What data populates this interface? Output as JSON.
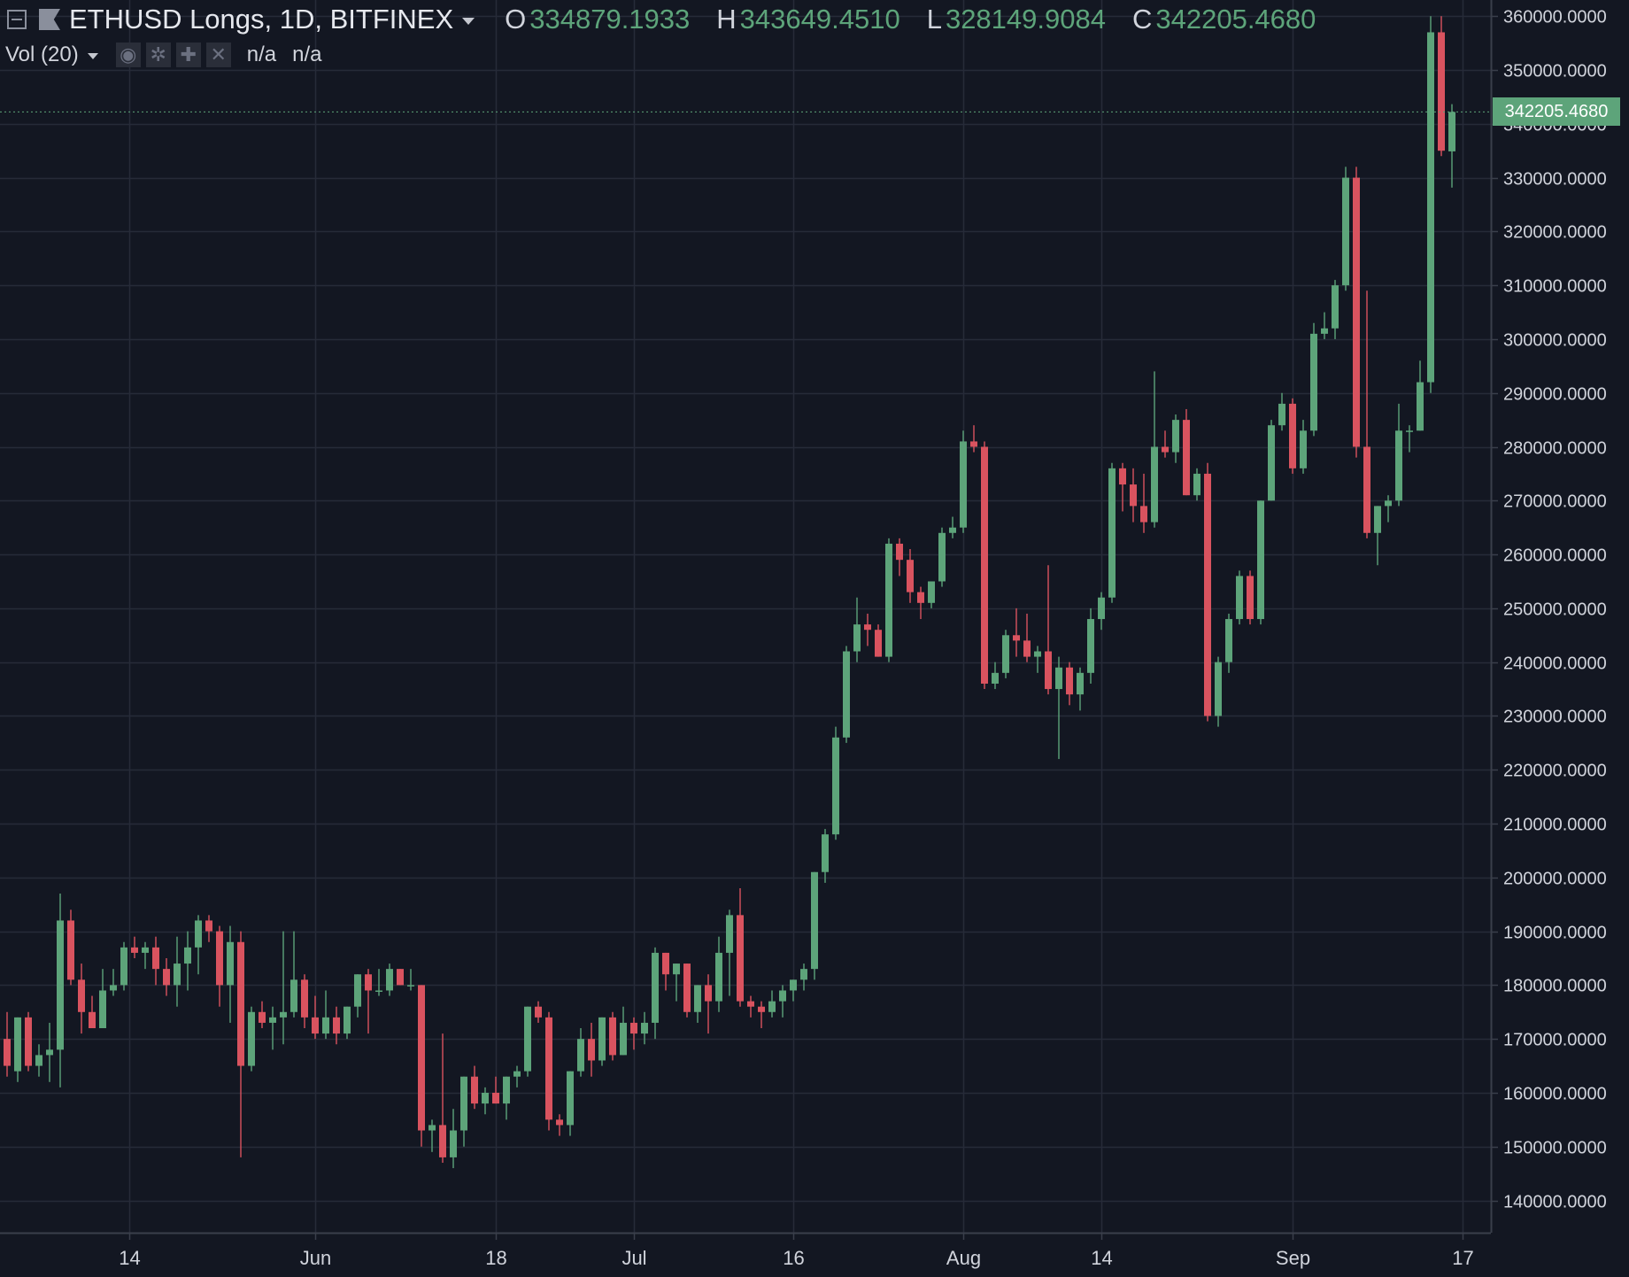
{
  "header": {
    "symbol": "ETHUSD Longs, 1D, BITFINEX",
    "o_label": "O",
    "o_value": "334879.1933",
    "h_label": "H",
    "h_value": "343649.4510",
    "l_label": "L",
    "l_value": "328149.9084",
    "c_label": "C",
    "c_value": "342205.4680"
  },
  "indicator": {
    "label": "Vol (20)",
    "value1": "n/a",
    "value2": "n/a"
  },
  "toolbar_icons": [
    "eye-icon",
    "gear-icon",
    "plus-icon",
    "close-icon"
  ],
  "price_tag": {
    "text": "342205.4680",
    "value": 342205.468,
    "color": "#5da47a"
  },
  "colors": {
    "background": "#131722",
    "up": "#5da47a",
    "down": "#d9535f",
    "grid": "#262b38",
    "text": "#d1d4dc"
  },
  "chart_data": {
    "type": "candlestick",
    "title": "ETHUSD Longs, 1D, BITFINEX",
    "grid": true,
    "y_axis_position": "right",
    "ylim": [
      134000,
      363000
    ],
    "y_ticks": [
      140000,
      150000,
      160000,
      170000,
      180000,
      190000,
      200000,
      210000,
      220000,
      230000,
      240000,
      250000,
      260000,
      270000,
      280000,
      290000,
      300000,
      310000,
      320000,
      330000,
      340000,
      350000,
      360000
    ],
    "y_tick_labels": [
      "140000.0000",
      "150000.0000",
      "160000.0000",
      "170000.0000",
      "180000.0000",
      "190000.0000",
      "200000.0000",
      "210000.0000",
      "220000.0000",
      "230000.0000",
      "240000.0000",
      "250000.0000",
      "260000.0000",
      "270000.0000",
      "280000.0000",
      "290000.0000",
      "300000.0000",
      "310000.0000",
      "320000.0000",
      "330000.0000",
      "340000.0000",
      "350000.0000",
      "360000.0000"
    ],
    "x_ticks": [
      {
        "label": "14",
        "index": 11.5
      },
      {
        "label": "Jun",
        "index": 29
      },
      {
        "label": "18",
        "index": 46
      },
      {
        "label": "Jul",
        "index": 59
      },
      {
        "label": "16",
        "index": 74
      },
      {
        "label": "Aug",
        "index": 90
      },
      {
        "label": "14",
        "index": 103
      },
      {
        "label": "Sep",
        "index": 121
      },
      {
        "label": "17",
        "index": 137
      }
    ],
    "candles": [
      [
        170000,
        175000,
        163000,
        165000
      ],
      [
        164000,
        174000,
        162000,
        174000
      ],
      [
        174000,
        175000,
        164000,
        165000
      ],
      [
        165000,
        169000,
        163000,
        167000
      ],
      [
        167000,
        173000,
        162000,
        168000
      ],
      [
        168000,
        197000,
        161000,
        192000
      ],
      [
        192000,
        194000,
        180000,
        181000
      ],
      [
        181000,
        184000,
        171000,
        175000
      ],
      [
        175000,
        178000,
        172000,
        172000
      ],
      [
        172000,
        183000,
        172000,
        179000
      ],
      [
        179000,
        183000,
        178000,
        180000
      ],
      [
        180000,
        188000,
        179000,
        187000
      ],
      [
        187000,
        189000,
        185000,
        186000
      ],
      [
        186000,
        188000,
        183000,
        187000
      ],
      [
        187000,
        189000,
        180000,
        183000
      ],
      [
        183000,
        185000,
        178000,
        180000
      ],
      [
        180000,
        189000,
        176000,
        184000
      ],
      [
        184000,
        190000,
        179000,
        187000
      ],
      [
        187000,
        193000,
        182000,
        192000
      ],
      [
        192000,
        193000,
        188000,
        190000
      ],
      [
        190000,
        191000,
        176000,
        180000
      ],
      [
        180000,
        191000,
        173000,
        188000
      ],
      [
        188000,
        190000,
        148000,
        165000
      ],
      [
        165000,
        176000,
        164000,
        175000
      ],
      [
        175000,
        177000,
        172000,
        173000
      ],
      [
        173000,
        176000,
        168000,
        174000
      ],
      [
        174000,
        190000,
        169000,
        175000
      ],
      [
        175000,
        190000,
        174000,
        181000
      ],
      [
        181000,
        182000,
        172000,
        174000
      ],
      [
        174000,
        178000,
        170000,
        171000
      ],
      [
        171000,
        179000,
        170000,
        174000
      ],
      [
        174000,
        176000,
        169000,
        171000
      ],
      [
        171000,
        176000,
        170000,
        176000
      ],
      [
        176000,
        182000,
        174000,
        182000
      ],
      [
        182000,
        183000,
        171000,
        179000
      ],
      [
        179000,
        183000,
        178000,
        179000
      ],
      [
        179000,
        184000,
        178000,
        183000
      ],
      [
        183000,
        183000,
        180000,
        180000
      ],
      [
        180000,
        183000,
        179000,
        180000
      ],
      [
        180000,
        180000,
        150000,
        153000
      ],
      [
        153000,
        155000,
        149000,
        154000
      ],
      [
        154000,
        171000,
        147000,
        148000
      ],
      [
        148000,
        157000,
        146000,
        153000
      ],
      [
        153000,
        163000,
        150000,
        163000
      ],
      [
        163000,
        165000,
        157000,
        158000
      ],
      [
        158000,
        161000,
        156000,
        160000
      ],
      [
        160000,
        163000,
        158000,
        158000
      ],
      [
        158000,
        163000,
        155000,
        163000
      ],
      [
        163000,
        165000,
        161000,
        164000
      ],
      [
        164000,
        176000,
        163000,
        176000
      ],
      [
        176000,
        177000,
        173000,
        174000
      ],
      [
        174000,
        175000,
        153000,
        155000
      ],
      [
        155000,
        156000,
        152000,
        154000
      ],
      [
        154000,
        164000,
        152000,
        164000
      ],
      [
        164000,
        172000,
        163000,
        170000
      ],
      [
        170000,
        173000,
        163000,
        166000
      ],
      [
        166000,
        174000,
        165000,
        174000
      ],
      [
        174000,
        175000,
        166000,
        167000
      ],
      [
        167000,
        176000,
        167000,
        173000
      ],
      [
        173000,
        174000,
        168000,
        171000
      ],
      [
        171000,
        175000,
        169000,
        173000
      ],
      [
        173000,
        187000,
        170000,
        186000
      ],
      [
        186000,
        186000,
        179000,
        182000
      ],
      [
        182000,
        184000,
        177000,
        184000
      ],
      [
        184000,
        184000,
        174000,
        175000
      ],
      [
        175000,
        180000,
        173000,
        180000
      ],
      [
        180000,
        182000,
        171000,
        177000
      ],
      [
        177000,
        189000,
        175000,
        186000
      ],
      [
        186000,
        194000,
        178000,
        193000
      ],
      [
        193000,
        198000,
        176000,
        177000
      ],
      [
        177000,
        178000,
        174000,
        176000
      ],
      [
        176000,
        177000,
        172000,
        175000
      ],
      [
        175000,
        179000,
        174000,
        177000
      ],
      [
        177000,
        180000,
        174000,
        179000
      ],
      [
        179000,
        181000,
        177000,
        181000
      ],
      [
        181000,
        184000,
        179000,
        183000
      ],
      [
        183000,
        201000,
        181000,
        201000
      ],
      [
        201000,
        209000,
        199000,
        208000
      ],
      [
        208000,
        228000,
        207000,
        226000
      ],
      [
        226000,
        243000,
        225000,
        242000
      ],
      [
        242000,
        252000,
        240000,
        247000
      ],
      [
        247000,
        249000,
        243000,
        246000
      ],
      [
        246000,
        247000,
        241000,
        241000
      ],
      [
        241000,
        263000,
        240000,
        262000
      ],
      [
        262000,
        263000,
        256000,
        259000
      ],
      [
        259000,
        261000,
        251000,
        253000
      ],
      [
        253000,
        254000,
        248000,
        251000
      ],
      [
        251000,
        255000,
        250000,
        255000
      ],
      [
        255000,
        265000,
        254000,
        264000
      ],
      [
        264000,
        267000,
        263000,
        265000
      ],
      [
        265000,
        283000,
        264000,
        281000
      ],
      [
        281000,
        284000,
        279000,
        280000
      ],
      [
        280000,
        281000,
        235000,
        236000
      ],
      [
        236000,
        240000,
        235000,
        238000
      ],
      [
        238000,
        246000,
        237000,
        245000
      ],
      [
        245000,
        250000,
        241000,
        244000
      ],
      [
        244000,
        249000,
        240000,
        241000
      ],
      [
        241000,
        243000,
        238000,
        242000
      ],
      [
        242000,
        258000,
        234000,
        235000
      ],
      [
        235000,
        241000,
        222000,
        239000
      ],
      [
        239000,
        240000,
        232000,
        234000
      ],
      [
        234000,
        239000,
        231000,
        238000
      ],
      [
        238000,
        250000,
        236000,
        248000
      ],
      [
        248000,
        253000,
        246000,
        252000
      ],
      [
        252000,
        277000,
        251000,
        276000
      ],
      [
        276000,
        277000,
        268000,
        273000
      ],
      [
        273000,
        276000,
        266000,
        269000
      ],
      [
        269000,
        275000,
        264000,
        266000
      ],
      [
        266000,
        294000,
        265000,
        280000
      ],
      [
        280000,
        283000,
        278000,
        279000
      ],
      [
        279000,
        286000,
        277000,
        285000
      ],
      [
        285000,
        287000,
        271000,
        271000
      ],
      [
        271000,
        276000,
        270000,
        275000
      ],
      [
        275000,
        277000,
        229000,
        230000
      ],
      [
        230000,
        241000,
        228000,
        240000
      ],
      [
        240000,
        249000,
        238000,
        248000
      ],
      [
        248000,
        257000,
        247000,
        256000
      ],
      [
        256000,
        257000,
        247000,
        248000
      ],
      [
        248000,
        270000,
        247000,
        270000
      ],
      [
        270000,
        285000,
        270000,
        284000
      ],
      [
        284000,
        290000,
        283000,
        288000
      ],
      [
        288000,
        289000,
        275000,
        276000
      ],
      [
        276000,
        285000,
        275000,
        283000
      ],
      [
        283000,
        303000,
        282000,
        301000
      ],
      [
        301000,
        305000,
        300000,
        302000
      ],
      [
        302000,
        311000,
        300000,
        310000
      ],
      [
        310000,
        332000,
        309000,
        330000
      ],
      [
        330000,
        332000,
        278000,
        280000
      ],
      [
        280000,
        309000,
        263000,
        264000
      ],
      [
        264000,
        269000,
        258000,
        269000
      ],
      [
        269000,
        271000,
        266000,
        270000
      ],
      [
        270000,
        288000,
        269000,
        283000
      ],
      [
        283000,
        284000,
        279000,
        283000
      ],
      [
        283000,
        296000,
        283000,
        292000
      ],
      [
        292000,
        360000,
        290000,
        357000
      ],
      [
        357000,
        360000,
        334000,
        335000
      ],
      [
        334879.1933,
        343649.451,
        328149.9084,
        342205.468
      ]
    ]
  }
}
